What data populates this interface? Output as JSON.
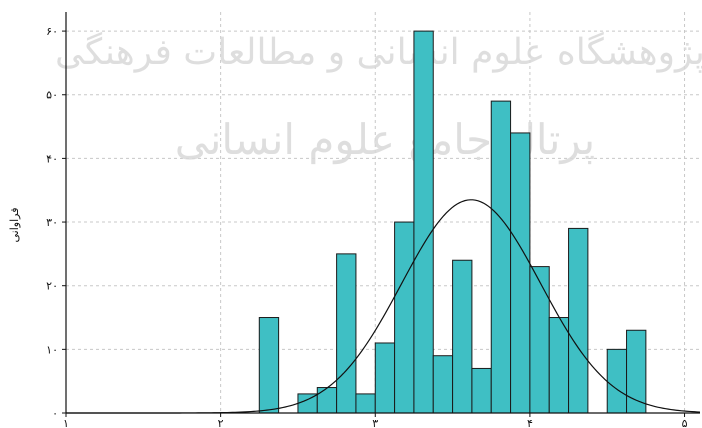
{
  "chart_data": {
    "type": "histogram",
    "ylabel": "فراوانی",
    "xlabel": "",
    "xlim": [
      1,
      5.1
    ],
    "ylim": [
      0,
      63
    ],
    "xticks": [
      1,
      2,
      3,
      4,
      5
    ],
    "xtick_labels": [
      "۱",
      "۲",
      "۳",
      "۴",
      "۵"
    ],
    "yticks": [
      0,
      10,
      20,
      30,
      40,
      50,
      60
    ],
    "ytick_labels": [
      "۰",
      "۱۰",
      "۲۰",
      "۳۰",
      "۴۰",
      "۵۰",
      "۶۰"
    ],
    "grid": true,
    "bin_width": 0.125,
    "bins": [
      {
        "start": 2.25,
        "end": 2.375,
        "value": 15
      },
      {
        "start": 2.5,
        "end": 2.625,
        "value": 3
      },
      {
        "start": 2.625,
        "end": 2.75,
        "value": 4
      },
      {
        "start": 2.75,
        "end": 2.875,
        "value": 25
      },
      {
        "start": 2.875,
        "end": 3.0,
        "value": 3
      },
      {
        "start": 3.0,
        "end": 3.125,
        "value": 11
      },
      {
        "start": 3.125,
        "end": 3.25,
        "value": 30
      },
      {
        "start": 3.25,
        "end": 3.375,
        "value": 60
      },
      {
        "start": 3.375,
        "end": 3.5,
        "value": 9
      },
      {
        "start": 3.5,
        "end": 3.625,
        "value": 24
      },
      {
        "start": 3.625,
        "end": 3.75,
        "value": 7
      },
      {
        "start": 3.75,
        "end": 3.875,
        "value": 49
      },
      {
        "start": 3.875,
        "end": 4.0,
        "value": 44
      },
      {
        "start": 4.0,
        "end": 4.125,
        "value": 23
      },
      {
        "start": 4.125,
        "end": 4.25,
        "value": 15
      },
      {
        "start": 4.25,
        "end": 4.375,
        "value": 29
      },
      {
        "start": 4.5,
        "end": 4.625,
        "value": 10
      },
      {
        "start": 4.625,
        "end": 4.75,
        "value": 13
      }
    ],
    "normal_curve": {
      "mean": 3.62,
      "sd": 0.45,
      "peak": 33.5
    }
  },
  "watermark": {
    "line1": "پژوهشگاه علوم انسانی و مطالعات فرهنگی",
    "line2": "پرتال جامع علوم انسانی"
  },
  "colors": {
    "bar_fill": "#3fbfc4",
    "bar_stroke": "#1a1a1a",
    "grid": "#c8c8c8",
    "axis": "#111111",
    "curve": "#111111"
  }
}
